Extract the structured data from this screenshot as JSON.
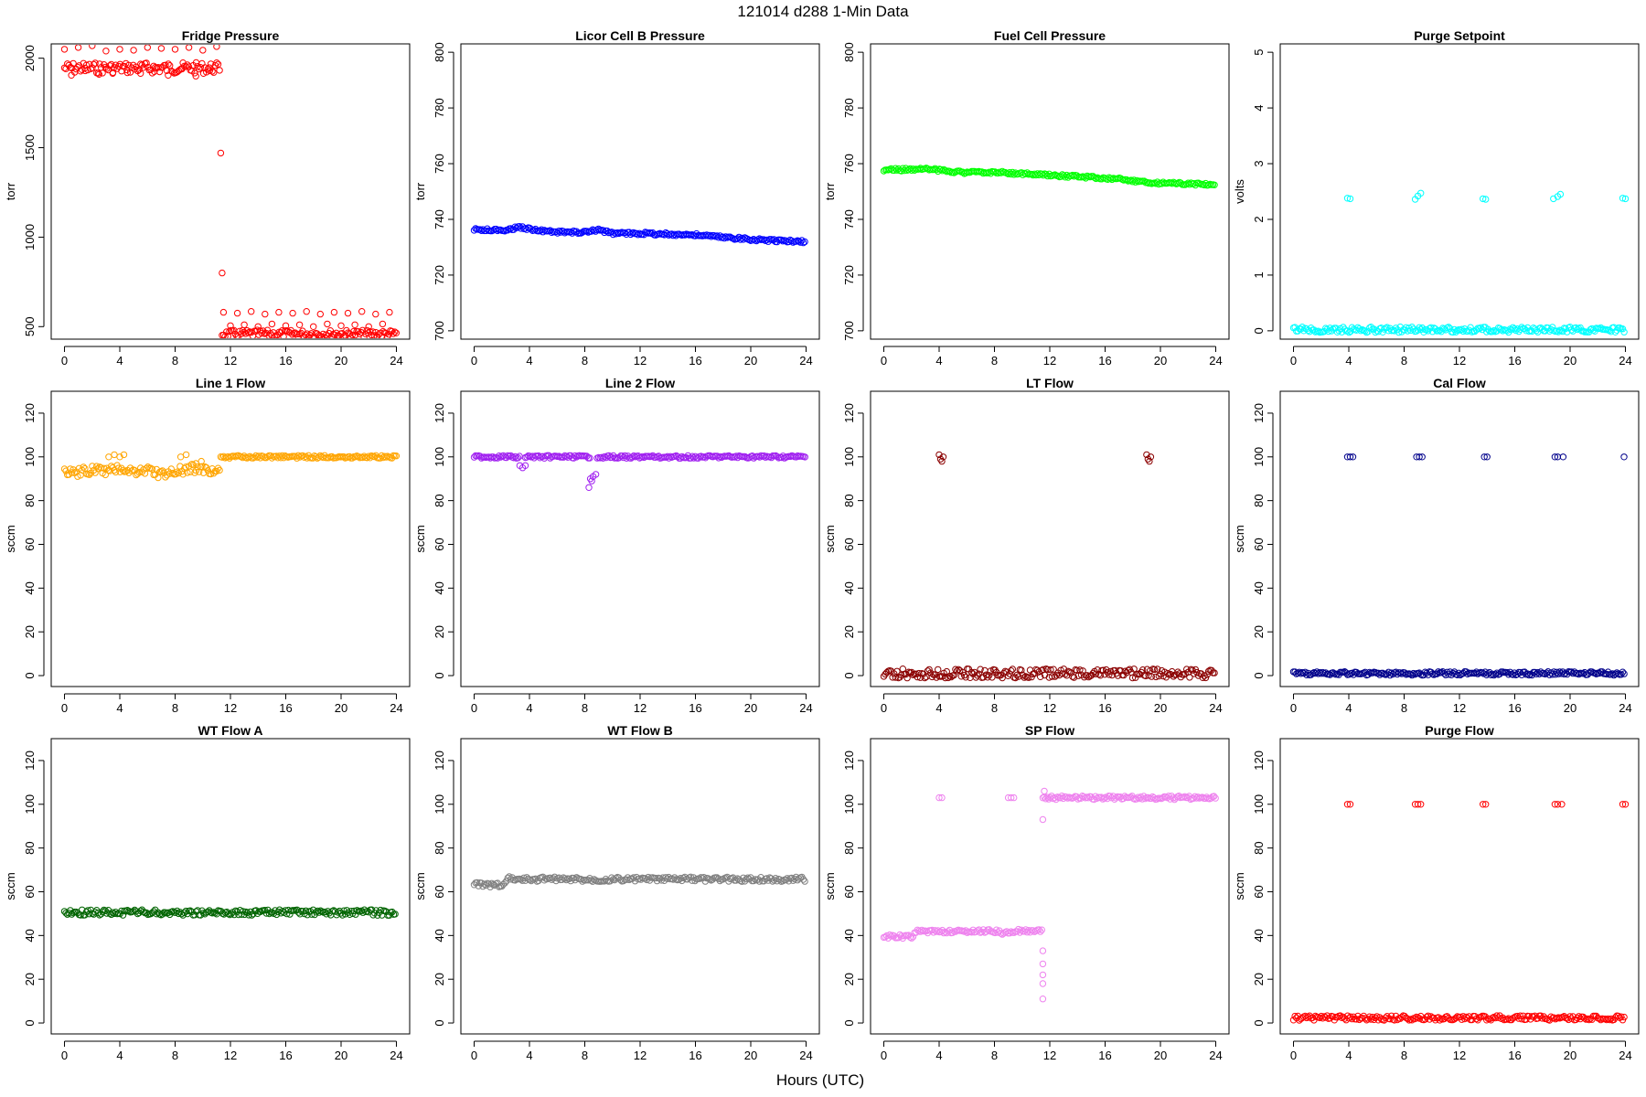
{
  "figure": {
    "title": "121014   d288   1-Min Data",
    "xlabel": "Hours (UTC)"
  },
  "chart_data": [
    {
      "type": "scatter",
      "title": "Fridge Pressure",
      "ylabel": "torr",
      "xlabel": "",
      "xlim": [
        0,
        24
      ],
      "ylim": [
        430,
        2080
      ],
      "xticks": [
        0,
        4,
        8,
        12,
        16,
        20,
        24
      ],
      "yticks": [
        500,
        1000,
        1500,
        2000
      ],
      "color": "#FF0000",
      "series": [
        {
          "x": [
            0,
            11.3
          ],
          "y": [
            1945,
            1945
          ],
          "band": 12,
          "kind": "dense"
        },
        {
          "x": [
            0,
            0.5,
            1,
            1.5,
            2,
            2.5,
            3,
            3.5,
            4,
            4.5,
            5,
            5.5,
            6,
            6.5,
            7,
            7.5,
            8,
            8.5,
            9,
            9.5,
            10,
            10.5,
            11
          ],
          "y": [
            2050,
            1905,
            2060,
            1930,
            2070,
            1910,
            2040,
            1920,
            2050,
            1935,
            2045,
            1915,
            2060,
            1925,
            2055,
            1905,
            2050,
            1940,
            2060,
            1900,
            2045,
            1930,
            2065
          ],
          "kind": "scatter"
        },
        {
          "x": [
            11.3,
            11.4
          ],
          "y": [
            1470,
            800
          ],
          "kind": "scatter"
        },
        {
          "x": [
            11.4,
            24
          ],
          "y": [
            460,
            460
          ],
          "band": 8,
          "kind": "dense"
        },
        {
          "x": [
            11.5,
            12,
            12.5,
            13,
            13.5,
            14,
            14.5,
            15,
            15.5,
            16,
            16.5,
            17,
            17.5,
            18,
            18.5,
            19,
            19.5,
            20,
            20.5,
            21,
            21.5,
            22,
            22.5,
            23,
            23.5
          ],
          "y": [
            580,
            505,
            575,
            510,
            585,
            500,
            570,
            515,
            580,
            505,
            575,
            510,
            585,
            500,
            570,
            515,
            580,
            505,
            575,
            510,
            585,
            500,
            570,
            515,
            580
          ],
          "kind": "scatter"
        }
      ]
    },
    {
      "type": "scatter",
      "title": "Licor Cell B Pressure",
      "ylabel": "torr",
      "xlabel": "",
      "xlim": [
        0,
        24
      ],
      "ylim": [
        697,
        803
      ],
      "xticks": [
        0,
        4,
        8,
        12,
        16,
        20,
        24
      ],
      "yticks": [
        700,
        720,
        740,
        760,
        780,
        800
      ],
      "color": "#0000FF",
      "series": [
        {
          "x": [
            0,
            2,
            3.5,
            4,
            6,
            8,
            9,
            10,
            12,
            16,
            20,
            24
          ],
          "y": [
            736.3,
            736.1,
            737.2,
            736.5,
            735.4,
            735.4,
            736.2,
            735.0,
            735.0,
            734.4,
            732.8,
            732.0
          ],
          "band": 3,
          "kind": "dense"
        }
      ]
    },
    {
      "type": "scatter",
      "title": "Fuel Cell Pressure",
      "ylabel": "torr",
      "xlabel": "",
      "xlim": [
        0,
        24
      ],
      "ylim": [
        697,
        803
      ],
      "xticks": [
        0,
        4,
        8,
        12,
        16,
        20,
        24
      ],
      "yticks": [
        700,
        720,
        740,
        760,
        780,
        800
      ],
      "color": "#00FF00",
      "series": [
        {
          "x": [
            0,
            2,
            3,
            4,
            6,
            8,
            10,
            12,
            16,
            20,
            24
          ],
          "y": [
            757.8,
            757.9,
            758.3,
            757.6,
            756.8,
            756.9,
            756.4,
            755.8,
            754.9,
            753.0,
            752.6
          ],
          "band": 3,
          "kind": "dense"
        }
      ]
    },
    {
      "type": "scatter",
      "title": "Purge Setpoint",
      "ylabel": "volts",
      "xlabel": "",
      "xlim": [
        0,
        24
      ],
      "ylim": [
        -0.15,
        5.15
      ],
      "xticks": [
        0,
        4,
        8,
        12,
        16,
        20,
        24
      ],
      "yticks": [
        0,
        1,
        2,
        3,
        4,
        5
      ],
      "color": "#00FFFF",
      "series": [
        {
          "x": [
            0,
            24
          ],
          "y": [
            0.02,
            0.02
          ],
          "band": 6,
          "kind": "dense"
        },
        {
          "x": [
            3.9,
            4.1,
            8.8,
            9.0,
            9.2,
            13.7,
            13.9,
            18.8,
            19.1,
            19.3,
            23.8,
            24.0
          ],
          "y": [
            2.38,
            2.37,
            2.36,
            2.42,
            2.47,
            2.37,
            2.36,
            2.37,
            2.41,
            2.45,
            2.38,
            2.37
          ],
          "kind": "scatter"
        }
      ]
    },
    {
      "type": "scatter",
      "title": "Line 1 Flow",
      "ylabel": "sccm",
      "xlabel": "",
      "xlim": [
        0,
        24
      ],
      "ylim": [
        -5,
        130
      ],
      "xticks": [
        0,
        4,
        8,
        12,
        16,
        20,
        24
      ],
      "yticks": [
        0,
        20,
        40,
        60,
        80,
        100,
        120
      ],
      "color": "#FFA500",
      "series": [
        {
          "x": [
            0,
            1,
            2,
            3,
            4,
            5,
            6,
            7,
            8,
            9,
            10,
            11,
            11.3
          ],
          "y": [
            94,
            93,
            94,
            93,
            95,
            93,
            94,
            92,
            93,
            95,
            94,
            93,
            94
          ],
          "band": 10,
          "kind": "dense"
        },
        {
          "x": [
            3.2,
            3.6,
            4.0,
            4.3,
            8.4,
            8.8,
            9.5,
            9.9
          ],
          "y": [
            100,
            101,
            100,
            101,
            100,
            101,
            97,
            98
          ],
          "kind": "scatter"
        },
        {
          "x": [
            11.3,
            24
          ],
          "y": [
            100,
            100
          ],
          "band": 3,
          "kind": "dense"
        }
      ]
    },
    {
      "type": "scatter",
      "title": "Line 2 Flow",
      "ylabel": "sccm",
      "xlabel": "",
      "xlim": [
        0,
        24
      ],
      "ylim": [
        -5,
        130
      ],
      "xticks": [
        0,
        4,
        8,
        12,
        16,
        20,
        24
      ],
      "yticks": [
        0,
        20,
        40,
        60,
        80,
        100,
        120
      ],
      "color": "#A020F0",
      "series": [
        {
          "x": [
            0,
            3.3
          ],
          "y": [
            100,
            100
          ],
          "band": 3,
          "kind": "dense"
        },
        {
          "x": [
            3.7,
            8.4
          ],
          "y": [
            100,
            100
          ],
          "band": 3,
          "kind": "dense"
        },
        {
          "x": [
            8.9,
            24
          ],
          "y": [
            100,
            100
          ],
          "band": 3,
          "kind": "dense"
        },
        {
          "x": [
            3.3,
            3.5,
            3.7,
            8.4,
            8.5,
            8.6,
            8.8,
            8.3
          ],
          "y": [
            96,
            95,
            96,
            90,
            89,
            91,
            92,
            86
          ],
          "kind": "scatter"
        }
      ]
    },
    {
      "type": "scatter",
      "title": "LT Flow",
      "ylabel": "sccm",
      "xlabel": "",
      "xlim": [
        0,
        24
      ],
      "ylim": [
        -5,
        130
      ],
      "xticks": [
        0,
        4,
        8,
        12,
        16,
        20,
        24
      ],
      "yticks": [
        0,
        20,
        40,
        60,
        80,
        100,
        120
      ],
      "color": "#8B0000",
      "series": [
        {
          "x": [
            0,
            24
          ],
          "y": [
            1,
            1
          ],
          "band": 10,
          "kind": "dense"
        },
        {
          "x": [
            4.0,
            4.1,
            4.2,
            4.3,
            19.0,
            19.1,
            19.2,
            19.3
          ],
          "y": [
            101,
            99,
            98,
            100,
            101,
            99,
            98,
            100
          ],
          "kind": "scatter"
        }
      ]
    },
    {
      "type": "scatter",
      "title": "Cal Flow",
      "ylabel": "sccm",
      "xlabel": "",
      "xlim": [
        0,
        24
      ],
      "ylim": [
        -5,
        130
      ],
      "xticks": [
        0,
        4,
        8,
        12,
        16,
        20,
        24
      ],
      "yticks": [
        0,
        20,
        40,
        60,
        80,
        100,
        120
      ],
      "color": "#00008B",
      "series": [
        {
          "x": [
            0,
            24
          ],
          "y": [
            1,
            1
          ],
          "band": 4,
          "kind": "dense"
        },
        {
          "x": [
            3.9,
            4.1,
            4.3,
            8.9,
            9.1,
            9.3,
            13.8,
            14.0,
            18.9,
            19.1,
            19.5,
            23.9
          ],
          "y": [
            100,
            100,
            100,
            100,
            100,
            100,
            100,
            100,
            100,
            100,
            100,
            100
          ],
          "kind": "scatter"
        }
      ]
    },
    {
      "type": "scatter",
      "title": "WT Flow A",
      "ylabel": "sccm",
      "xlabel": "",
      "xlim": [
        0,
        24
      ],
      "ylim": [
        -5,
        130
      ],
      "xticks": [
        0,
        4,
        8,
        12,
        16,
        20,
        24
      ],
      "yticks": [
        0,
        20,
        40,
        60,
        80,
        100,
        120
      ],
      "color": "#006400",
      "series": [
        {
          "x": [
            0,
            24
          ],
          "y": [
            50.5,
            50.5
          ],
          "band": 6,
          "kind": "dense"
        }
      ]
    },
    {
      "type": "scatter",
      "title": "WT Flow B",
      "ylabel": "sccm",
      "xlabel": "",
      "xlim": [
        0,
        24
      ],
      "ylim": [
        -5,
        130
      ],
      "xticks": [
        0,
        4,
        8,
        12,
        16,
        20,
        24
      ],
      "yticks": [
        0,
        20,
        40,
        60,
        80,
        100,
        120
      ],
      "color": "#808080",
      "series": [
        {
          "x": [
            0,
            2.2,
            2.3,
            2.5,
            3,
            8,
            12,
            16,
            20,
            24
          ],
          "y": [
            63.2,
            63.2,
            65.5,
            66.3,
            65.8,
            65.7,
            65.8,
            65.8,
            65.7,
            65.7
          ],
          "band": 5,
          "kind": "dense"
        }
      ]
    },
    {
      "type": "scatter",
      "title": "SP Flow",
      "ylabel": "sccm",
      "xlabel": "",
      "xlim": [
        0,
        24
      ],
      "ylim": [
        -5,
        130
      ],
      "xticks": [
        0,
        4,
        8,
        12,
        16,
        20,
        24
      ],
      "yticks": [
        0,
        20,
        40,
        60,
        80,
        100,
        120
      ],
      "color": "#EE82EE",
      "series": [
        {
          "x": [
            0,
            2,
            2.4,
            4,
            6,
            8,
            8.8,
            9.3,
            10,
            11.5
          ],
          "y": [
            39.5,
            39.5,
            42,
            41.8,
            41.7,
            42,
            41,
            42,
            42,
            42
          ],
          "band": 4,
          "kind": "dense"
        },
        {
          "x": [
            11.5,
            12.5,
            14,
            16,
            18,
            20,
            22,
            24
          ],
          "y": [
            103,
            103,
            103,
            103,
            103,
            103,
            103,
            103
          ],
          "band": 4,
          "kind": "dense"
        },
        {
          "x": [
            4.0,
            4.2,
            9.0,
            9.2,
            9.4,
            11.5,
            11.5,
            11.5,
            11.5,
            11.5,
            11.5,
            11.6
          ],
          "y": [
            103,
            103,
            103,
            103,
            103,
            11,
            18,
            22,
            27,
            33,
            93,
            106
          ],
          "kind": "scatter"
        }
      ]
    },
    {
      "type": "scatter",
      "title": "Purge Flow",
      "ylabel": "sccm",
      "xlabel": "",
      "xlim": [
        0,
        24
      ],
      "ylim": [
        -5,
        130
      ],
      "xticks": [
        0,
        4,
        8,
        12,
        16,
        20,
        24
      ],
      "yticks": [
        0,
        20,
        40,
        60,
        80,
        100,
        120
      ],
      "color": "#FF0000",
      "series": [
        {
          "x": [
            0,
            24
          ],
          "y": [
            2.3,
            2.3
          ],
          "band": 5,
          "kind": "dense"
        },
        {
          "x": [
            3.9,
            4.1,
            8.8,
            9.0,
            9.2,
            13.7,
            13.9,
            18.9,
            19.1,
            19.4,
            23.8,
            24.0
          ],
          "y": [
            100,
            100,
            100,
            100,
            100,
            100,
            100,
            100,
            100,
            100,
            100,
            100
          ],
          "kind": "scatter"
        }
      ]
    }
  ]
}
